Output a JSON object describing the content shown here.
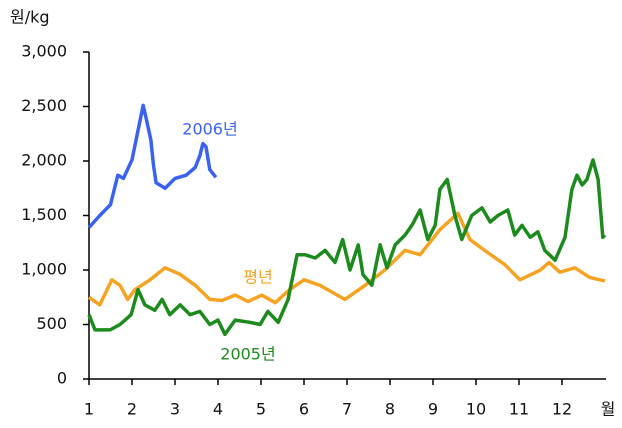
{
  "chart_data": {
    "type": "line",
    "y_label": "원/kg",
    "x_label": "월",
    "xlim": [
      1,
      13
    ],
    "xticks": [
      1,
      2,
      3,
      4,
      5,
      6,
      7,
      8,
      9,
      10,
      11,
      12
    ],
    "ylim": [
      0,
      3000
    ],
    "yticks": [
      0,
      500,
      {
        "value": 1000,
        "label": "1,000"
      },
      {
        "value": 1500,
        "label": "1,500"
      },
      {
        "value": 2000,
        "label": "2,000"
      },
      {
        "value": 2500,
        "label": "2,500"
      },
      {
        "value": 3000,
        "label": "3,000"
      }
    ],
    "series": [
      {
        "name": "2006년",
        "color": "#3a62f0",
        "x": [
          1.0,
          1.25,
          1.5,
          1.67,
          1.8,
          2.0,
          2.14,
          2.26,
          2.33,
          2.44,
          2.5,
          2.56,
          2.77,
          3.0,
          3.26,
          3.47,
          3.58,
          3.65,
          3.72,
          3.81,
          3.95
        ],
        "values": [
          1390,
          1500,
          1600,
          1870,
          1840,
          2010,
          2280,
          2510,
          2390,
          2190,
          1960,
          1800,
          1750,
          1840,
          1870,
          1940,
          2050,
          2160,
          2130,
          1920,
          1850
        ]
      },
      {
        "name": "평년",
        "color": "#f5a322",
        "x": [
          1.0,
          1.25,
          1.53,
          1.72,
          1.9,
          2.07,
          2.42,
          2.77,
          3.12,
          3.47,
          3.81,
          4.09,
          4.4,
          4.7,
          5.02,
          5.33,
          5.67,
          6.0,
          6.37,
          6.95,
          7.42,
          7.88,
          8.35,
          8.7,
          9.16,
          9.58,
          9.86,
          10.2,
          10.67,
          11.02,
          11.5,
          11.7,
          11.95,
          12.3,
          12.65,
          13.0
        ],
        "values": [
          750,
          680,
          910,
          860,
          730,
          820,
          910,
          1020,
          960,
          860,
          730,
          720,
          770,
          710,
          770,
          700,
          820,
          910,
          860,
          730,
          860,
          1000,
          1180,
          1140,
          1370,
          1520,
          1280,
          1180,
          1050,
          910,
          1000,
          1070,
          980,
          1020,
          930,
          900
        ]
      },
      {
        "name": "2005년",
        "color": "#1c8a1c",
        "x": [
          1.0,
          1.14,
          1.49,
          1.72,
          1.98,
          2.14,
          2.3,
          2.53,
          2.7,
          2.88,
          3.12,
          3.35,
          3.58,
          3.81,
          4.0,
          4.16,
          4.4,
          4.74,
          4.98,
          5.16,
          5.4,
          5.63,
          5.84,
          6.02,
          6.26,
          6.49,
          6.72,
          6.9,
          7.07,
          7.26,
          7.37,
          7.58,
          7.77,
          7.93,
          8.12,
          8.35,
          8.51,
          8.7,
          8.88,
          9.05,
          9.16,
          9.33,
          9.51,
          9.67,
          9.9,
          10.14,
          10.33,
          10.51,
          10.74,
          10.9,
          11.07,
          11.26,
          11.44,
          11.6,
          11.84,
          12.07,
          12.23,
          12.35,
          12.47,
          12.58,
          12.72,
          12.84,
          12.95,
          13.0
        ],
        "values": [
          590,
          450,
          450,
          500,
          590,
          820,
          680,
          630,
          730,
          590,
          680,
          590,
          620,
          500,
          540,
          410,
          540,
          520,
          500,
          620,
          520,
          730,
          1140,
          1140,
          1110,
          1180,
          1070,
          1280,
          1000,
          1230,
          960,
          860,
          1230,
          1020,
          1230,
          1320,
          1410,
          1550,
          1280,
          1410,
          1740,
          1830,
          1500,
          1280,
          1500,
          1570,
          1440,
          1500,
          1550,
          1320,
          1410,
          1300,
          1350,
          1180,
          1090,
          1300,
          1740,
          1870,
          1780,
          1830,
          2010,
          1830,
          1300,
          1320
        ]
      }
    ]
  }
}
